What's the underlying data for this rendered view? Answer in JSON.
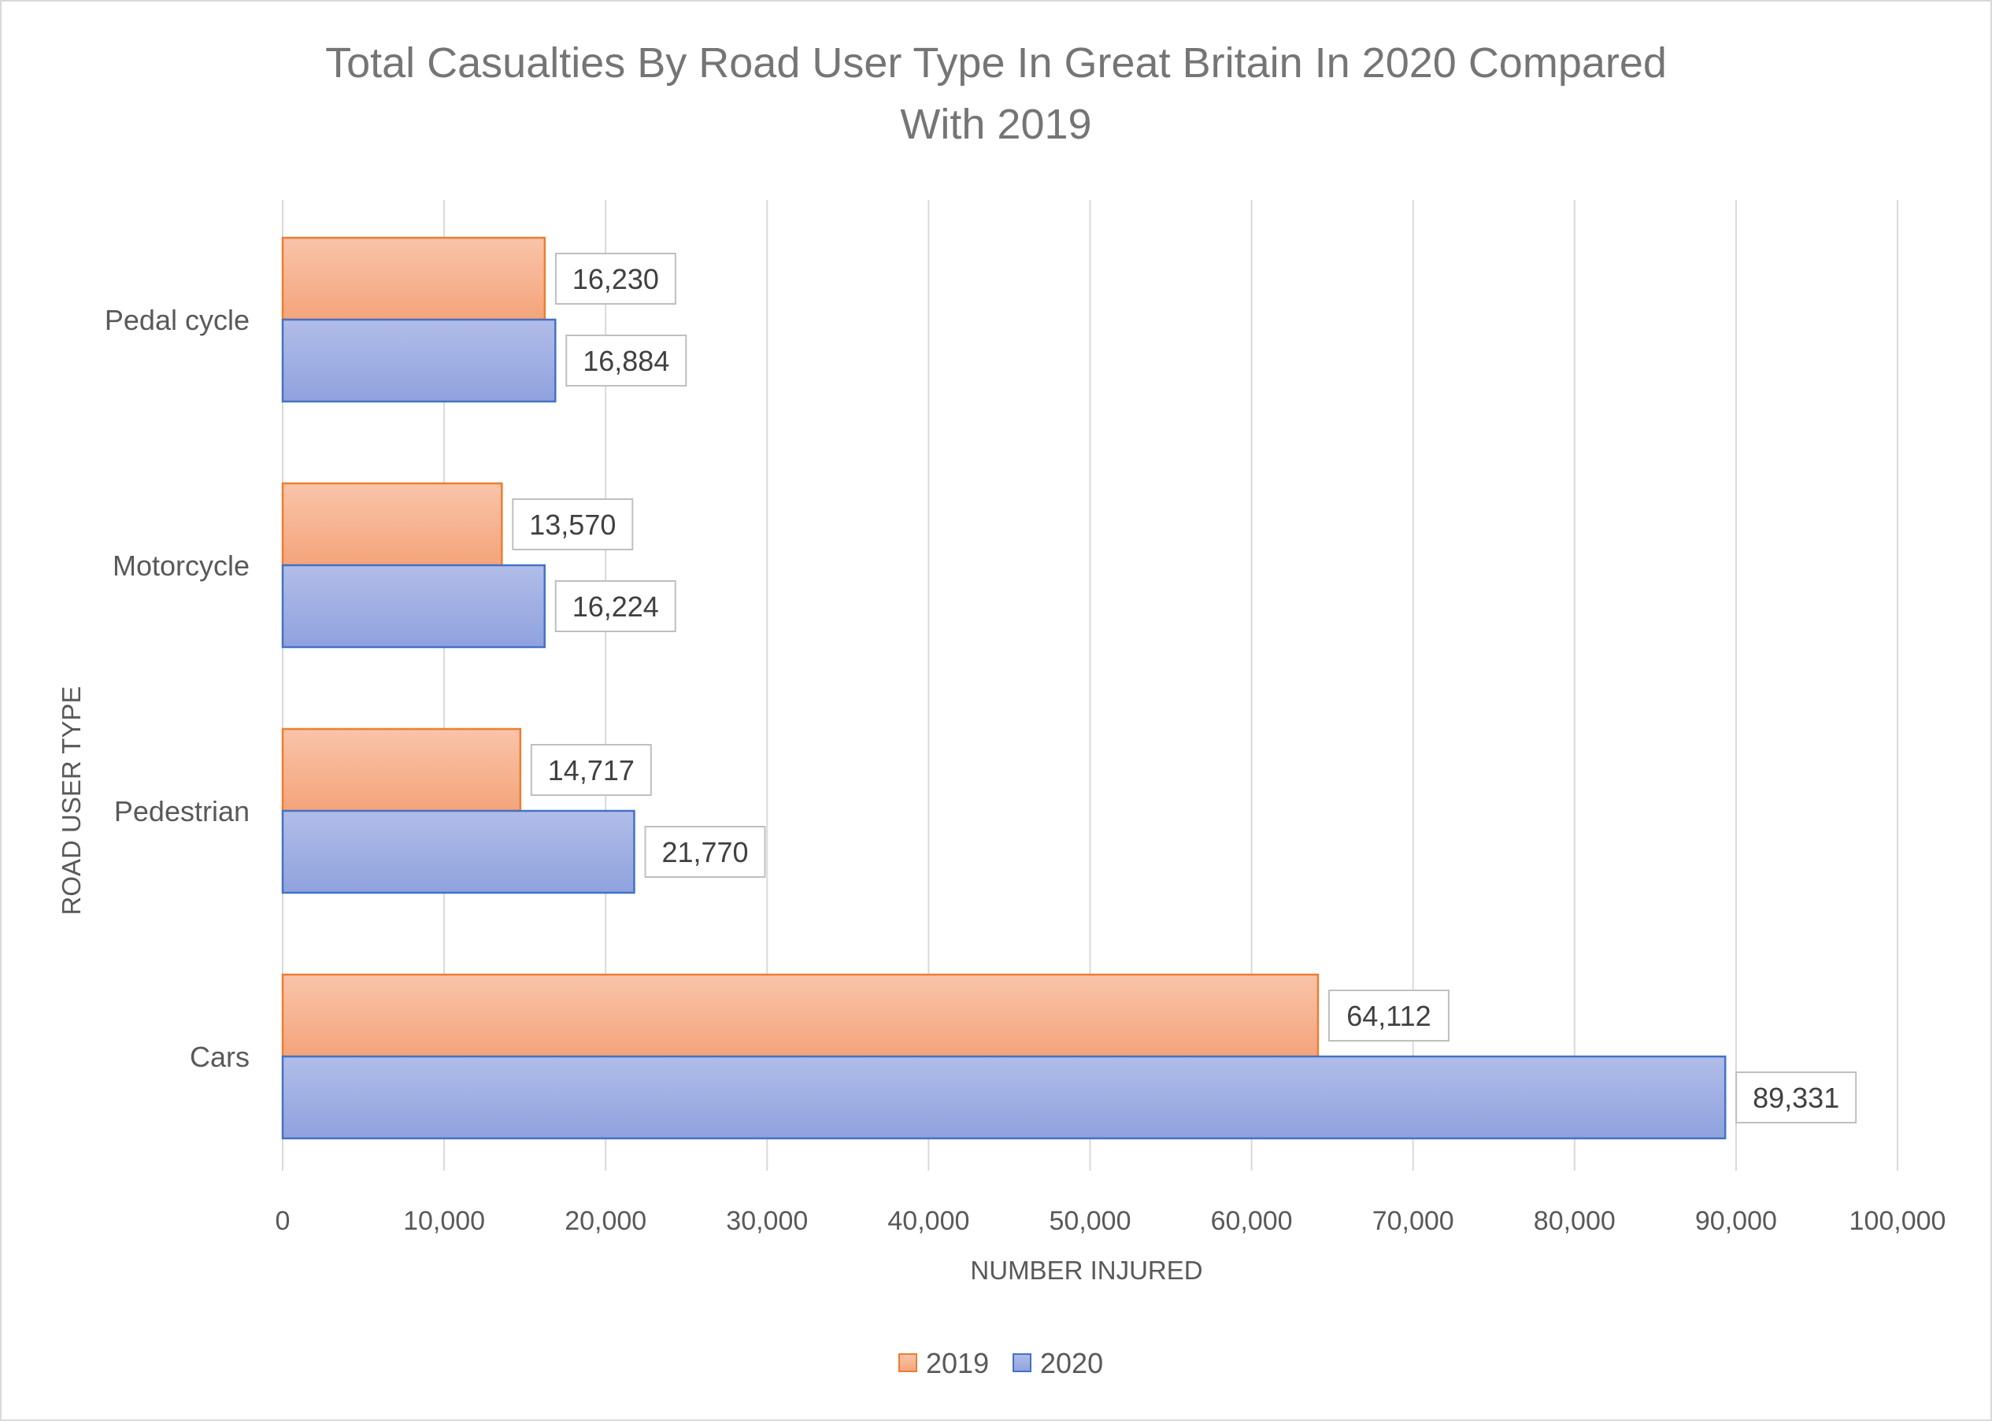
{
  "chart_data": {
    "type": "bar",
    "orientation": "horizontal",
    "title": [
      "Total Casualties By Road User Type In Great Britain In 2020 Compared",
      "With 2019"
    ],
    "xlabel": "NUMBER INJURED",
    "ylabel": "ROAD USER TYPE",
    "xlim": [
      0,
      100000
    ],
    "x_ticks": [
      0,
      10000,
      20000,
      30000,
      40000,
      50000,
      60000,
      70000,
      80000,
      90000,
      100000
    ],
    "x_tick_labels": [
      "0",
      "10,000",
      "20,000",
      "30,000",
      "40,000",
      "50,000",
      "60,000",
      "70,000",
      "80,000",
      "90,000",
      "100,000"
    ],
    "categories": [
      "Cars",
      "Pedestrian",
      "Motorcycle",
      "Pedal cycle"
    ],
    "series": [
      {
        "name": "2019",
        "values": [
          64112,
          14717,
          13570,
          16230
        ],
        "value_labels": [
          "64,112",
          "14,717",
          "13,570",
          "16,230"
        ],
        "fill_top": "#f9c4a9",
        "fill_bottom": "#f4a47b",
        "stroke": "#ed7d31"
      },
      {
        "name": "2020",
        "values": [
          89331,
          21770,
          16224,
          16884
        ],
        "value_labels": [
          "89,331",
          "21,770",
          "16,224",
          "16,884"
        ],
        "fill_top": "#b1bde9",
        "fill_bottom": "#8fa2de",
        "stroke": "#4472c4"
      }
    ],
    "grid": "vertical",
    "legend_position": "bottom",
    "data_labels": true
  }
}
